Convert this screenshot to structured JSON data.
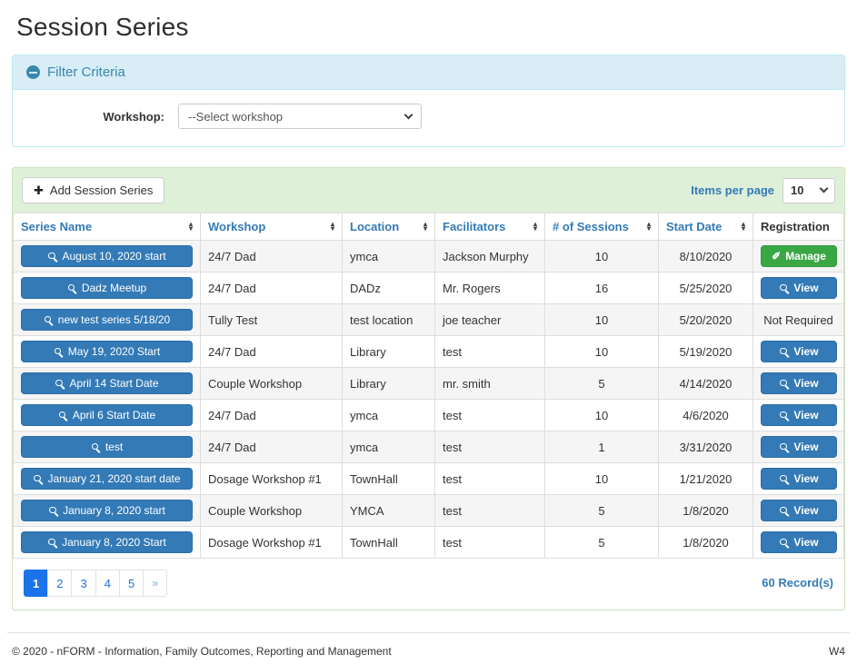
{
  "page": {
    "title": "Session Series"
  },
  "filter": {
    "heading": "Filter Criteria",
    "workshop_label": "Workshop:",
    "workshop_selected": "--Select workshop"
  },
  "toolbar": {
    "add_button_label": "Add Session Series",
    "add_icon_glyph": "✚",
    "items_per_page_label": "Items per page",
    "items_per_page_value": "10"
  },
  "table": {
    "columns": [
      {
        "label": "Series Name",
        "sortable": true
      },
      {
        "label": "Workshop",
        "sortable": true
      },
      {
        "label": "Location",
        "sortable": true
      },
      {
        "label": "Facilitators",
        "sortable": true
      },
      {
        "label": "# of Sessions",
        "sortable": true
      },
      {
        "label": "Start Date",
        "sortable": true
      },
      {
        "label": "Registration",
        "sortable": false
      }
    ],
    "sort_icon_glyphs": {
      "up": "▴",
      "down": "▾"
    },
    "rows": [
      {
        "series_name": "August 10, 2020 start",
        "workshop": "24/7 Dad",
        "location": "ymca",
        "facilitators": "Jackson Murphy",
        "sessions": "10",
        "start_date": "8/10/2020",
        "registration": {
          "type": "manage",
          "label": "Manage"
        }
      },
      {
        "series_name": "Dadz Meetup",
        "workshop": "24/7 Dad",
        "location": "DADz",
        "facilitators": "Mr. Rogers",
        "sessions": "16",
        "start_date": "5/25/2020",
        "registration": {
          "type": "view",
          "label": "View"
        }
      },
      {
        "series_name": "new test series 5/18/20",
        "workshop": "Tully Test",
        "location": "test location",
        "facilitators": "joe teacher",
        "sessions": "10",
        "start_date": "5/20/2020",
        "registration": {
          "type": "text",
          "label": "Not Required"
        }
      },
      {
        "series_name": "May 19, 2020 Start",
        "workshop": "24/7 Dad",
        "location": "Library",
        "facilitators": "test",
        "sessions": "10",
        "start_date": "5/19/2020",
        "registration": {
          "type": "view",
          "label": "View"
        }
      },
      {
        "series_name": "April 14 Start Date",
        "workshop": "Couple Workshop",
        "location": "Library",
        "facilitators": "mr. smith",
        "sessions": "5",
        "start_date": "4/14/2020",
        "registration": {
          "type": "view",
          "label": "View"
        }
      },
      {
        "series_name": "April 6 Start Date",
        "workshop": "24/7 Dad",
        "location": "ymca",
        "facilitators": "test",
        "sessions": "10",
        "start_date": "4/6/2020",
        "registration": {
          "type": "view",
          "label": "View"
        }
      },
      {
        "series_name": "test",
        "workshop": "24/7 Dad",
        "location": "ymca",
        "facilitators": "test",
        "sessions": "1",
        "start_date": "3/31/2020",
        "registration": {
          "type": "view",
          "label": "View"
        }
      },
      {
        "series_name": "January 21, 2020 start date",
        "workshop": "Dosage Workshop #1",
        "location": "TownHall",
        "facilitators": "test",
        "sessions": "10",
        "start_date": "1/21/2020",
        "registration": {
          "type": "view",
          "label": "View"
        }
      },
      {
        "series_name": "January 8, 2020 start",
        "workshop": "Couple Workshop",
        "location": "YMCA",
        "facilitators": "test",
        "sessions": "5",
        "start_date": "1/8/2020",
        "registration": {
          "type": "view",
          "label": "View"
        }
      },
      {
        "series_name": "January 8, 2020 Start",
        "workshop": "Dosage Workshop #1",
        "location": "TownHall",
        "facilitators": "test",
        "sessions": "5",
        "start_date": "1/8/2020",
        "registration": {
          "type": "view",
          "label": "View"
        }
      }
    ],
    "pencil_icon_glyph": "✐"
  },
  "pagination": {
    "pages": [
      "1",
      "2",
      "3",
      "4",
      "5"
    ],
    "active": "1",
    "next_label": "»",
    "records_label": "60 Record(s)"
  },
  "footer": {
    "left": "© 2020 - nFORM - Information, Family Outcomes, Reporting and Management",
    "right": "W4"
  },
  "colors": {
    "primary": "#337ab7",
    "primary_border": "#2e6da4",
    "success": "#3aa745",
    "success_border": "#339940",
    "info_bg": "#d9edf7",
    "info_text": "#3a87ad",
    "green_bg": "#dff0d8",
    "green_border": "#cde3bc",
    "pagination_blue": "#1a73e8"
  }
}
